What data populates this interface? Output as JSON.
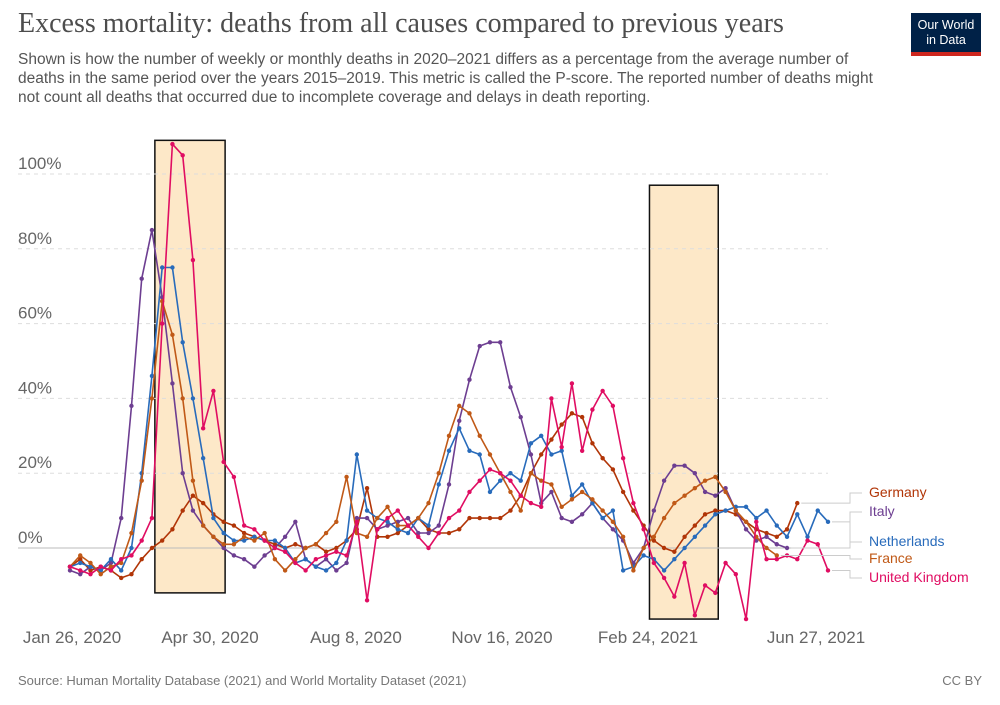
{
  "header": {
    "title": "Excess mortality: deaths from all causes compared to previous years",
    "subtitle": "Shown is how the number of weekly or monthly deaths in 2020–2021 differs as a percentage from the average number of deaths in the same period over the years 2015–2019. This metric is called the P-score. The reported number of deaths might not count all deaths that occurred due to incomplete coverage and delays in death reporting.",
    "logo_line1": "Our World",
    "logo_line2": "in Data"
  },
  "footer": {
    "source": "Source: Human Mortality Database (2021) and World Mortality Dataset (2021)",
    "license": "CC BY"
  },
  "colors": {
    "Germany": "#b13507",
    "Italy": "#6d3e91",
    "Netherlands": "#286bbb",
    "France": "#c05917",
    "United Kingdom": "#e00d62",
    "highlight_fill": "#fde8c8",
    "logo_bg": "#002147",
    "logo_bar": "#ce261e"
  },
  "chart_data": {
    "type": "line",
    "title": "Excess mortality: deaths from all causes compared to previous years",
    "xlabel": "",
    "ylabel": "",
    "ylim": [
      -15,
      110
    ],
    "yticks": [
      0,
      20,
      40,
      60,
      80,
      100
    ],
    "ytick_labels": [
      "0%",
      "20%",
      "40%",
      "60%",
      "80%",
      "100%"
    ],
    "x_tick_labels": [
      "Jan 26, 2020",
      "Apr 30, 2020",
      "Aug 8, 2020",
      "Nov 16, 2020",
      "Feb 24, 2021",
      "Jun 27, 2021"
    ],
    "x_range": [
      "2020-01-26",
      "2021-06-27"
    ],
    "grid": "horizontal dashed",
    "legend": "right, inline labels",
    "highlight_ranges": [
      {
        "from": "2020-03-24",
        "to": "2020-05-11",
        "ymin": -12,
        "ymax": 109
      },
      {
        "from": "2021-02-25",
        "to": "2021-04-13",
        "ymin": -19,
        "ymax": 97
      }
    ],
    "series": [
      {
        "name": "Germany",
        "x": [
          "2020-01-26",
          "2020-02-02",
          "2020-02-09",
          "2020-02-16",
          "2020-02-23",
          "2020-03-01",
          "2020-03-08",
          "2020-03-15",
          "2020-03-22",
          "2020-03-29",
          "2020-04-05",
          "2020-04-12",
          "2020-04-19",
          "2020-04-26",
          "2020-05-03",
          "2020-05-10",
          "2020-05-17",
          "2020-05-24",
          "2020-05-31",
          "2020-06-07",
          "2020-06-14",
          "2020-06-21",
          "2020-06-28",
          "2020-07-05",
          "2020-07-12",
          "2020-07-19",
          "2020-07-26",
          "2020-08-02",
          "2020-08-09",
          "2020-08-16",
          "2020-08-23",
          "2020-08-30",
          "2020-09-06",
          "2020-09-13",
          "2020-09-20",
          "2020-09-27",
          "2020-10-04",
          "2020-10-11",
          "2020-10-18",
          "2020-10-25",
          "2020-11-01",
          "2020-11-08",
          "2020-11-15",
          "2020-11-22",
          "2020-11-29",
          "2020-12-06",
          "2020-12-13",
          "2020-12-20",
          "2020-12-27",
          "2021-01-03",
          "2021-01-10",
          "2021-01-17",
          "2021-01-24",
          "2021-01-31",
          "2021-02-07",
          "2021-02-14",
          "2021-02-21",
          "2021-02-28",
          "2021-03-07",
          "2021-03-14",
          "2021-03-21",
          "2021-03-28",
          "2021-04-04",
          "2021-04-11",
          "2021-04-18",
          "2021-04-25",
          "2021-05-02",
          "2021-05-09",
          "2021-05-16",
          "2021-05-23",
          "2021-05-30",
          "2021-06-06"
        ],
        "y": [
          -5,
          -3,
          -6,
          -5,
          -6,
          -8,
          -7,
          -3,
          0,
          2,
          5,
          10,
          14,
          12,
          9,
          7,
          6,
          4,
          3,
          2,
          1,
          0,
          1,
          0,
          1,
          -1,
          0,
          2,
          5,
          16,
          3,
          3,
          4,
          6,
          8,
          5,
          4,
          4,
          5,
          8,
          8,
          8,
          8,
          10,
          14,
          20,
          25,
          29,
          33,
          36,
          35,
          28,
          24,
          21,
          15,
          10,
          6,
          2,
          0,
          -1,
          3,
          6,
          9,
          10,
          10,
          9,
          7,
          5,
          4,
          3,
          5,
          12
        ]
      },
      {
        "name": "Italy",
        "x": [
          "2020-01-26",
          "2020-02-02",
          "2020-02-09",
          "2020-02-16",
          "2020-02-23",
          "2020-03-01",
          "2020-03-08",
          "2020-03-15",
          "2020-03-22",
          "2020-03-29",
          "2020-04-05",
          "2020-04-12",
          "2020-04-19",
          "2020-04-26",
          "2020-05-03",
          "2020-05-10",
          "2020-05-17",
          "2020-05-24",
          "2020-05-31",
          "2020-06-07",
          "2020-06-14",
          "2020-06-21",
          "2020-06-28",
          "2020-07-05",
          "2020-07-12",
          "2020-07-19",
          "2020-07-26",
          "2020-08-02",
          "2020-08-09",
          "2020-08-16",
          "2020-08-23",
          "2020-08-30",
          "2020-09-06",
          "2020-09-13",
          "2020-09-20",
          "2020-09-27",
          "2020-10-04",
          "2020-10-11",
          "2020-10-18",
          "2020-10-25",
          "2020-11-01",
          "2020-11-08",
          "2020-11-15",
          "2020-11-22",
          "2020-11-29",
          "2020-12-06",
          "2020-12-13",
          "2020-12-20",
          "2020-12-27",
          "2021-01-03",
          "2021-01-10",
          "2021-01-17",
          "2021-01-24",
          "2021-01-31",
          "2021-02-07",
          "2021-02-14",
          "2021-02-21",
          "2021-02-28",
          "2021-03-07",
          "2021-03-14",
          "2021-03-21",
          "2021-03-28",
          "2021-04-04",
          "2021-04-11",
          "2021-04-18",
          "2021-04-25",
          "2021-05-02",
          "2021-05-09",
          "2021-05-16",
          "2021-05-23",
          "2021-05-30"
        ],
        "y": [
          -6,
          -7,
          -5,
          -6,
          -4,
          8,
          38,
          72,
          85,
          67,
          44,
          20,
          10,
          6,
          3,
          0,
          -2,
          -3,
          -5,
          -2,
          0,
          3,
          7,
          -3,
          -5,
          -3,
          -6,
          -4,
          8,
          8,
          5,
          6,
          7,
          8,
          4,
          4,
          6,
          17,
          34,
          45,
          54,
          55,
          55,
          43,
          35,
          25,
          12,
          15,
          8,
          7,
          9,
          12,
          8,
          5,
          2,
          -4,
          0,
          10,
          18,
          22,
          22,
          20,
          15,
          14,
          16,
          10,
          5,
          2,
          3,
          1,
          0
        ]
      },
      {
        "name": "Netherlands",
        "x": [
          "2020-01-26",
          "2020-02-02",
          "2020-02-09",
          "2020-02-16",
          "2020-02-23",
          "2020-03-01",
          "2020-03-08",
          "2020-03-15",
          "2020-03-22",
          "2020-03-29",
          "2020-04-05",
          "2020-04-12",
          "2020-04-19",
          "2020-04-26",
          "2020-05-03",
          "2020-05-10",
          "2020-05-17",
          "2020-05-24",
          "2020-05-31",
          "2020-06-07",
          "2020-06-14",
          "2020-06-21",
          "2020-06-28",
          "2020-07-05",
          "2020-07-12",
          "2020-07-19",
          "2020-07-26",
          "2020-08-02",
          "2020-08-09",
          "2020-08-16",
          "2020-08-23",
          "2020-08-30",
          "2020-09-06",
          "2020-09-13",
          "2020-09-20",
          "2020-09-27",
          "2020-10-04",
          "2020-10-11",
          "2020-10-18",
          "2020-10-25",
          "2020-11-01",
          "2020-11-08",
          "2020-11-15",
          "2020-11-22",
          "2020-11-29",
          "2020-12-06",
          "2020-12-13",
          "2020-12-20",
          "2020-12-27",
          "2021-01-03",
          "2021-01-10",
          "2021-01-17",
          "2021-01-24",
          "2021-01-31",
          "2021-02-07",
          "2021-02-14",
          "2021-02-21",
          "2021-02-28",
          "2021-03-07",
          "2021-03-14",
          "2021-03-21",
          "2021-03-28",
          "2021-04-04",
          "2021-04-11",
          "2021-04-18",
          "2021-04-25",
          "2021-05-02",
          "2021-05-09",
          "2021-05-16",
          "2021-05-23",
          "2021-05-30",
          "2021-06-06",
          "2021-06-13",
          "2021-06-20",
          "2021-06-27"
        ],
        "y": [
          -5,
          -4,
          -5,
          -6,
          -3,
          -6,
          0,
          20,
          46,
          75,
          75,
          55,
          40,
          24,
          8,
          4,
          2,
          2,
          3,
          2,
          2,
          0,
          -4,
          -3,
          -5,
          -6,
          -4,
          2,
          25,
          10,
          8,
          7,
          5,
          4,
          8,
          6,
          17,
          26,
          32,
          26,
          25,
          15,
          18,
          20,
          18,
          28,
          30,
          25,
          26,
          14,
          17,
          12,
          8,
          10,
          -6,
          -5,
          -2,
          -3,
          -6,
          -3,
          0,
          3,
          6,
          9,
          10,
          11,
          11,
          8,
          10,
          6,
          3,
          9,
          3,
          10,
          7
        ]
      },
      {
        "name": "France",
        "x": [
          "2020-01-26",
          "2020-02-02",
          "2020-02-09",
          "2020-02-16",
          "2020-02-23",
          "2020-03-01",
          "2020-03-08",
          "2020-03-15",
          "2020-03-22",
          "2020-03-29",
          "2020-04-05",
          "2020-04-12",
          "2020-04-19",
          "2020-04-26",
          "2020-05-03",
          "2020-05-10",
          "2020-05-17",
          "2020-05-24",
          "2020-05-31",
          "2020-06-07",
          "2020-06-14",
          "2020-06-21",
          "2020-06-28",
          "2020-07-05",
          "2020-07-12",
          "2020-07-19",
          "2020-07-26",
          "2020-08-02",
          "2020-08-09",
          "2020-08-16",
          "2020-08-23",
          "2020-08-30",
          "2020-09-06",
          "2020-09-13",
          "2020-09-20",
          "2020-09-27",
          "2020-10-04",
          "2020-10-11",
          "2020-10-18",
          "2020-10-25",
          "2020-11-01",
          "2020-11-08",
          "2020-11-15",
          "2020-11-22",
          "2020-11-29",
          "2020-12-06",
          "2020-12-13",
          "2020-12-20",
          "2020-12-27",
          "2021-01-03",
          "2021-01-10",
          "2021-01-17",
          "2021-01-24",
          "2021-01-31",
          "2021-02-07",
          "2021-02-14",
          "2021-02-21",
          "2021-02-28",
          "2021-03-07",
          "2021-03-14",
          "2021-03-21",
          "2021-03-28",
          "2021-04-04",
          "2021-04-11",
          "2021-04-18",
          "2021-04-25",
          "2021-05-02",
          "2021-05-09",
          "2021-05-16",
          "2021-05-23"
        ],
        "y": [
          -5,
          -2,
          -4,
          -7,
          -5,
          -4,
          4,
          18,
          40,
          66,
          57,
          40,
          18,
          6,
          3,
          1,
          1,
          3,
          2,
          4,
          -3,
          -6,
          -3,
          0,
          1,
          4,
          7,
          19,
          4,
          3,
          8,
          11,
          6,
          6,
          8,
          12,
          20,
          30,
          38,
          36,
          30,
          25,
          20,
          15,
          10,
          20,
          18,
          17,
          11,
          13,
          15,
          13,
          10,
          7,
          3,
          -6,
          0,
          3,
          8,
          12,
          14,
          16,
          18,
          19,
          15,
          10,
          7,
          3,
          0,
          -2
        ]
      },
      {
        "name": "United Kingdom",
        "x": [
          "2020-01-26",
          "2020-02-02",
          "2020-02-09",
          "2020-02-16",
          "2020-02-23",
          "2020-03-01",
          "2020-03-08",
          "2020-03-15",
          "2020-03-22",
          "2020-03-29",
          "2020-04-05",
          "2020-04-12",
          "2020-04-19",
          "2020-04-26",
          "2020-05-03",
          "2020-05-10",
          "2020-05-17",
          "2020-05-24",
          "2020-05-31",
          "2020-06-07",
          "2020-06-14",
          "2020-06-21",
          "2020-06-28",
          "2020-07-05",
          "2020-07-12",
          "2020-07-19",
          "2020-07-26",
          "2020-08-02",
          "2020-08-09",
          "2020-08-16",
          "2020-08-23",
          "2020-08-30",
          "2020-09-06",
          "2020-09-13",
          "2020-09-20",
          "2020-09-27",
          "2020-10-04",
          "2020-10-11",
          "2020-10-18",
          "2020-10-25",
          "2020-11-01",
          "2020-11-08",
          "2020-11-15",
          "2020-11-22",
          "2020-11-29",
          "2020-12-06",
          "2020-12-13",
          "2020-12-20",
          "2020-12-27",
          "2021-01-03",
          "2021-01-10",
          "2021-01-17",
          "2021-01-24",
          "2021-01-31",
          "2021-02-07",
          "2021-02-14",
          "2021-02-21",
          "2021-02-28",
          "2021-03-07",
          "2021-03-14",
          "2021-03-21",
          "2021-03-28",
          "2021-04-04",
          "2021-04-11",
          "2021-04-18",
          "2021-04-25",
          "2021-05-02",
          "2021-05-09",
          "2021-05-16",
          "2021-05-23",
          "2021-05-30",
          "2021-06-06",
          "2021-06-13",
          "2021-06-20",
          "2021-06-27"
        ],
        "y": [
          -5,
          -6,
          -7,
          -5,
          -6,
          -3,
          -2,
          2,
          8,
          60,
          108,
          105,
          77,
          32,
          42,
          23,
          19,
          6,
          5,
          2,
          0,
          -1,
          -4,
          -6,
          -3,
          -2,
          -1,
          -2,
          7,
          -14,
          5,
          8,
          10,
          6,
          3,
          0,
          4,
          8,
          10,
          15,
          18,
          21,
          20,
          18,
          14,
          12,
          11,
          40,
          27,
          44,
          26,
          37,
          42,
          38,
          24,
          12,
          5,
          -4,
          -8,
          -13,
          -4,
          -18,
          -10,
          -12,
          -4,
          -7,
          -19,
          7,
          -3,
          -3,
          -2,
          -3,
          2,
          1,
          -6
        ]
      }
    ]
  }
}
